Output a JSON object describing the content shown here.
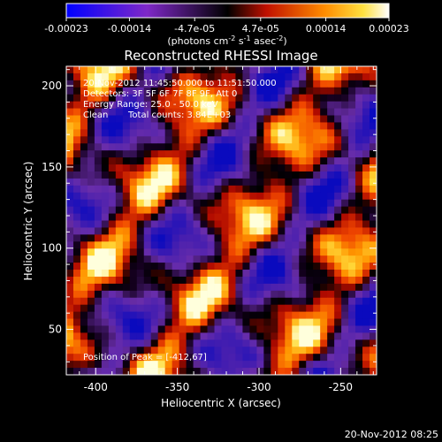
{
  "chart_data": {
    "type": "heatmap",
    "title": "Reconstructed RHESSI Image",
    "xlabel": "Heliocentric X (arcsec)",
    "ylabel": "Heliocentric Y (arcsec)",
    "xlim": [
      -418,
      -228
    ],
    "ylim": [
      22,
      212
    ],
    "x_ticks": [
      -400,
      -350,
      -300,
      -250
    ],
    "y_ticks": [
      50,
      100,
      150,
      200
    ],
    "colorbar": {
      "range": [
        -0.00023,
        0.00023
      ],
      "tick_labels": [
        "-0.00023",
        "-0.00014",
        "-4.7e-05",
        "4.7e-05",
        "0.00014",
        "0.00023"
      ],
      "unit_label_parts": [
        "(photons cm",
        "-2",
        " s",
        "-1",
        " asec",
        "-2",
        ")"
      ]
    },
    "annotations": {
      "time_range": "20-Nov-2012 11:45:50.000 to 11:51:50.000",
      "detectors": "Detectors: 3F 5F 6F 7F 8F 9F, Att 0",
      "energy_range": "Energy Range: 25.0 - 50.0 keV",
      "algorithm": "Clean",
      "total_counts": "Total counts: 3.84E+03",
      "peak": "Position of Peak = [-412,67]"
    },
    "footer_timestamp": "20-Nov-2012 08:25"
  }
}
